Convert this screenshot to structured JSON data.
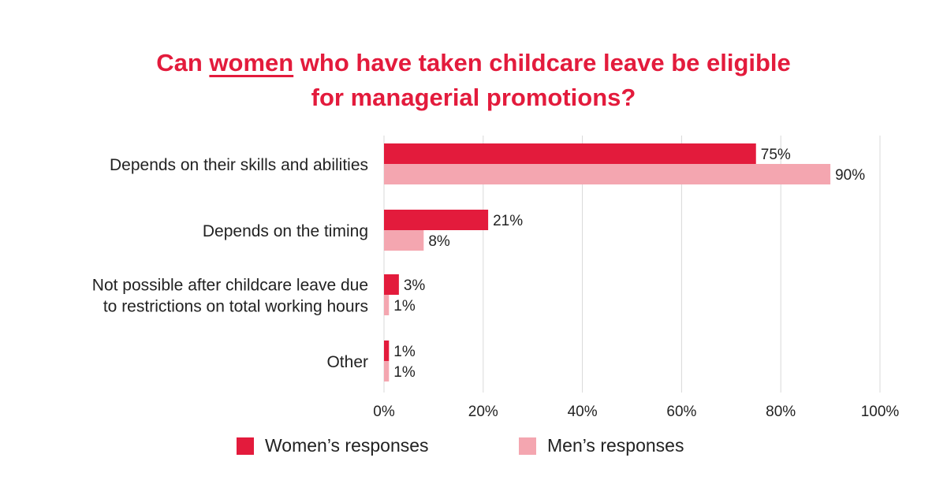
{
  "title": {
    "pre": "Can ",
    "underlined": "women",
    "post": " who have taken childcare leave be eligible",
    "line2": "for managerial promotions?"
  },
  "colors": {
    "women": "#e31b3c",
    "men": "#f4a6b0",
    "title": "#e31b3c",
    "grid": "#d9d9d9"
  },
  "chart_data": {
    "type": "bar",
    "orientation": "horizontal",
    "categories": [
      [
        "Depends on their skills and abilities"
      ],
      [
        "Depends on the timing"
      ],
      [
        "Not possible after childcare leave due",
        "to restrictions on total working hours"
      ],
      [
        "Other"
      ]
    ],
    "series": [
      {
        "name": "Women’s responses",
        "values": [
          75,
          21,
          3,
          1
        ],
        "labels": [
          "75%",
          "21%",
          "3%",
          "1%"
        ]
      },
      {
        "name": "Men’s responses",
        "values": [
          90,
          8,
          1,
          1
        ],
        "labels": [
          "90%",
          "8%",
          "1%",
          "1%"
        ]
      }
    ],
    "xlim": [
      0,
      100
    ],
    "xticks": [
      0,
      20,
      40,
      60,
      80,
      100
    ],
    "xtick_labels": [
      "0%",
      "20%",
      "40%",
      "60%",
      "80%",
      "100%"
    ],
    "grid": true,
    "legend_position": "bottom"
  }
}
